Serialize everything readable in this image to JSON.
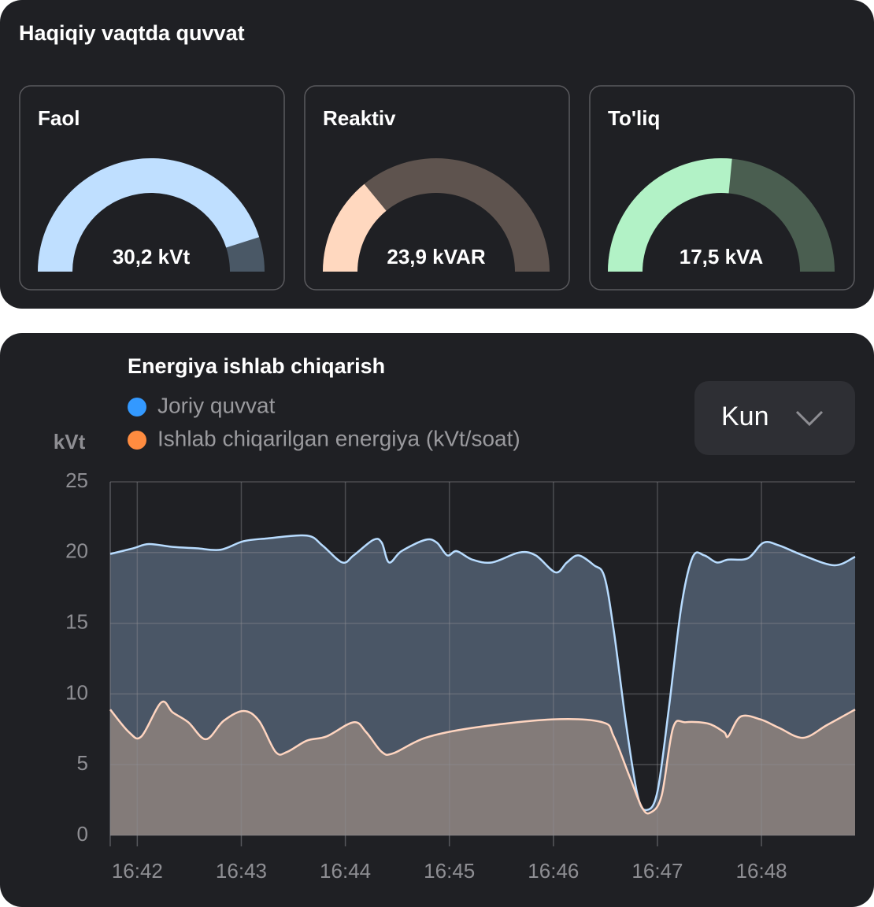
{
  "header": {
    "title": "Haqiqiy vaqtda quvvat"
  },
  "controls": {
    "period": "Kun"
  },
  "chart_data": [
    {
      "type": "gauge",
      "title": "Faol",
      "values": [
        30.2
      ],
      "value_labels": [
        "30,2 kVt"
      ],
      "ylim": [
        0,
        33.5
      ],
      "color": "#bfdfff",
      "track_color": "#4a5866"
    },
    {
      "type": "gauge",
      "title": "Reaktiv",
      "values": [
        23.9
      ],
      "value_labels": [
        "23,9 kVAR"
      ],
      "ylim": [
        0,
        85
      ],
      "color": "#ffd8bf",
      "track_color": "#5e534e"
    },
    {
      "type": "gauge",
      "title": "To'liq",
      "values": [
        17.5
      ],
      "value_labels": [
        "17,5 kVA"
      ],
      "ylim": [
        0,
        33
      ],
      "color": "#b2f2c6",
      "track_color": "#4a5e50"
    },
    {
      "type": "line",
      "title": "Energiya ishlab chiqarish",
      "ylabel": "kVt",
      "xlim": [
        41.74,
        48.9
      ],
      "xticks": [
        {
          "value": 42,
          "label": "16:42"
        },
        {
          "value": 43,
          "label": "16:43"
        },
        {
          "value": 44,
          "label": "16:44"
        },
        {
          "value": 45,
          "label": "16:45"
        },
        {
          "value": 46,
          "label": "16:46"
        },
        {
          "value": 47,
          "label": "16:47"
        },
        {
          "value": 48,
          "label": "16:48"
        }
      ],
      "ylim": [
        0,
        25
      ],
      "yticks": [
        0,
        5,
        10,
        15,
        20,
        25
      ],
      "grid": true,
      "series": [
        {
          "name": "Joriy quvvat",
          "color": "#3399ff",
          "line_color": "#b8dcff",
          "fill_color": "#4a5666",
          "x": [
            41.74,
            41.96,
            42.11,
            42.34,
            42.57,
            42.8,
            43.02,
            43.25,
            43.63,
            43.78,
            43.97,
            44.08,
            44.27,
            44.35,
            44.42,
            44.54,
            44.77,
            44.88,
            44.98,
            45.07,
            45.22,
            45.41,
            45.67,
            45.83,
            46.02,
            46.13,
            46.24,
            46.39,
            46.49,
            46.58,
            46.7,
            46.81,
            46.9,
            47.0,
            47.11,
            47.23,
            47.34,
            47.45,
            47.57,
            47.68,
            47.87,
            48.02,
            48.17,
            48.4,
            48.7,
            48.9
          ],
          "values": [
            19.9,
            20.3,
            20.6,
            20.4,
            20.3,
            20.2,
            20.8,
            21.0,
            21.2,
            20.5,
            19.3,
            19.8,
            20.9,
            20.7,
            19.3,
            20.1,
            20.9,
            20.7,
            19.8,
            20.1,
            19.5,
            19.3,
            20.0,
            19.8,
            18.6,
            19.3,
            19.8,
            19.1,
            18.3,
            14.5,
            7.8,
            2.8,
            1.8,
            3.1,
            9.0,
            16.2,
            19.7,
            19.8,
            19.3,
            19.5,
            19.6,
            20.7,
            20.5,
            19.8,
            19.1,
            19.7
          ]
        },
        {
          "name": "Ishlab chiqarilgan energiya (kVt/soat)",
          "color": "#ff8c40",
          "line_color": "#ffd5c0",
          "fill_color": "#837b79",
          "x": [
            41.74,
            41.92,
            42.04,
            42.23,
            42.34,
            42.49,
            42.66,
            42.83,
            43.02,
            43.17,
            43.33,
            43.44,
            43.63,
            43.82,
            44.08,
            44.2,
            44.35,
            44.46,
            44.77,
            45.22,
            45.98,
            46.47,
            46.58,
            46.73,
            46.85,
            46.93,
            47.04,
            47.15,
            47.27,
            47.49,
            47.64,
            47.68,
            47.8,
            47.99,
            48.17,
            48.4,
            48.63,
            48.9
          ],
          "values": [
            8.9,
            7.3,
            7.0,
            9.4,
            8.7,
            8.0,
            6.8,
            8.1,
            8.8,
            8.1,
            5.9,
            5.9,
            6.7,
            7.0,
            8.0,
            7.3,
            5.9,
            5.8,
            6.9,
            7.6,
            8.2,
            8.0,
            7.0,
            4.2,
            2.0,
            1.6,
            2.8,
            7.6,
            8.0,
            7.9,
            7.3,
            7.0,
            8.4,
            8.2,
            7.6,
            6.9,
            7.8,
            8.9
          ]
        }
      ]
    }
  ]
}
